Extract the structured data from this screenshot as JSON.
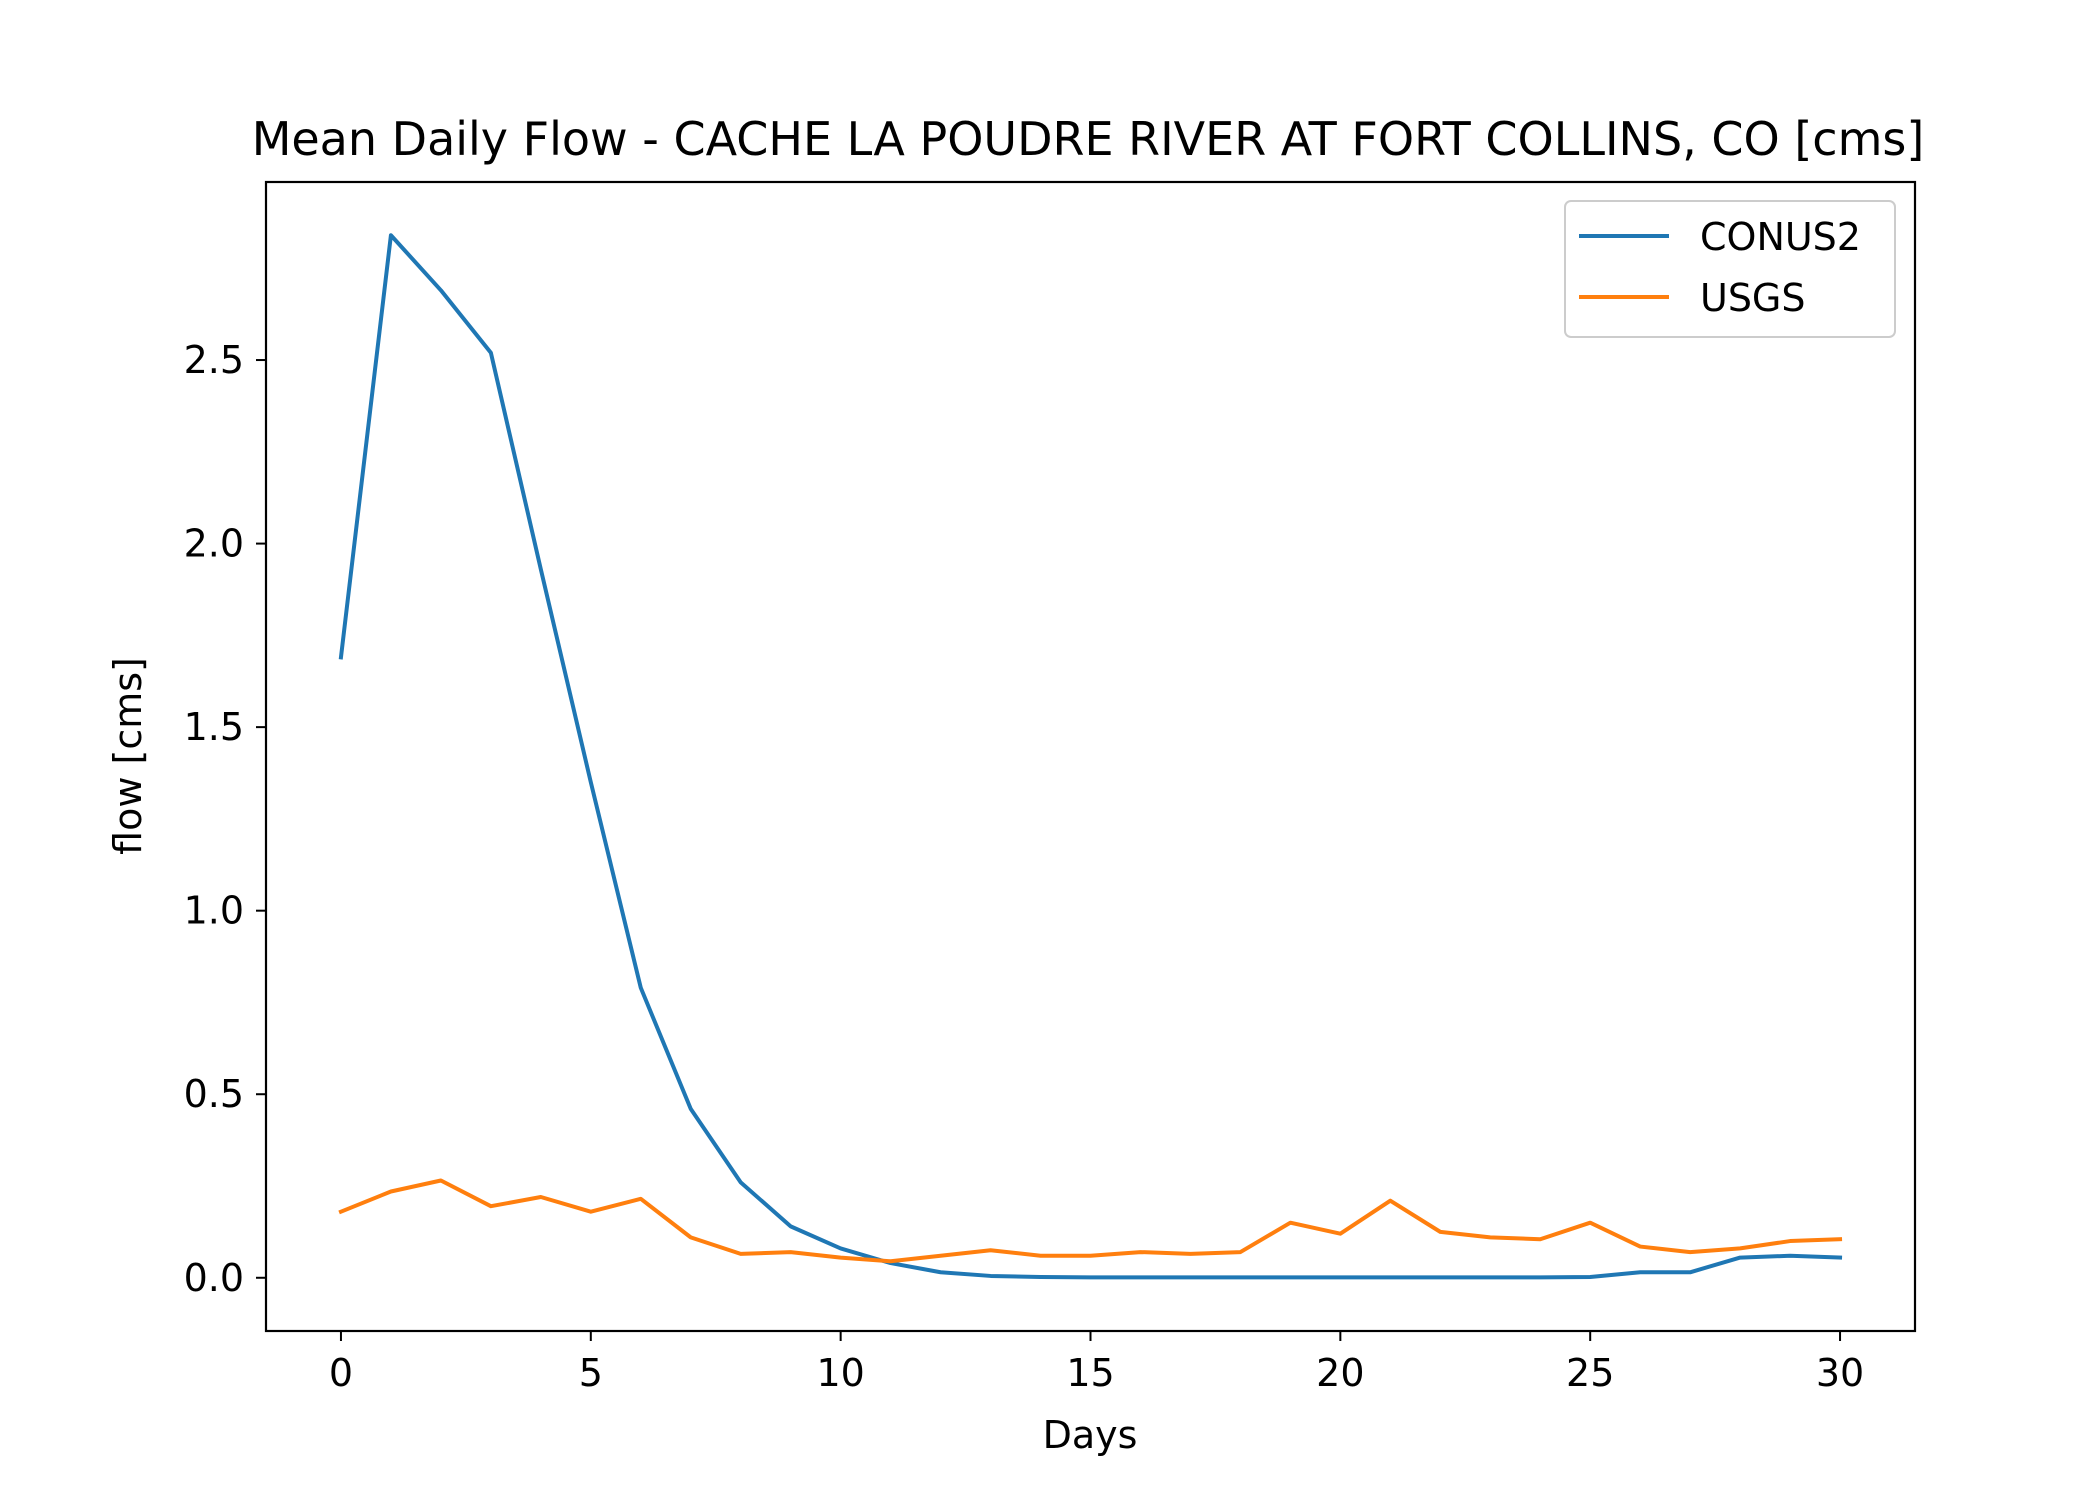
{
  "chart_data": {
    "type": "line",
    "title": "Mean Daily Flow - CACHE LA POUDRE RIVER AT FORT COLLINS, CO [cms]",
    "xlabel": "Days",
    "ylabel": "flow [cms]",
    "xlim": [
      -1.5,
      31.5
    ],
    "ylim": [
      -0.145,
      2.985
    ],
    "xticks": [
      0,
      5,
      10,
      15,
      20,
      25,
      30
    ],
    "xtick_labels": [
      "0",
      "5",
      "10",
      "15",
      "20",
      "25",
      "30"
    ],
    "yticks": [
      0.0,
      0.5,
      1.0,
      1.5,
      2.0,
      2.5
    ],
    "ytick_labels": [
      "0.0",
      "0.5",
      "1.0",
      "1.5",
      "2.0",
      "2.5"
    ],
    "grid": false,
    "legend_position": "top-right",
    "x": [
      0,
      1,
      2,
      3,
      4,
      5,
      6,
      7,
      8,
      9,
      10,
      11,
      12,
      13,
      14,
      15,
      16,
      17,
      18,
      19,
      20,
      21,
      22,
      23,
      24,
      25,
      26,
      27,
      28,
      29,
      30
    ],
    "series": [
      {
        "name": "CONUS2",
        "color": "#1f77b4",
        "values": [
          1.69,
          2.84,
          2.69,
          2.52,
          1.93,
          1.35,
          0.79,
          0.46,
          0.26,
          0.14,
          0.08,
          0.04,
          0.015,
          0.005,
          0.002,
          0.001,
          0.001,
          0.001,
          0.001,
          0.001,
          0.001,
          0.001,
          0.001,
          0.001,
          0.001,
          0.002,
          0.015,
          0.015,
          0.055,
          0.06,
          0.055
        ]
      },
      {
        "name": "USGS",
        "color": "#ff7f0e",
        "values": [
          0.18,
          0.235,
          0.265,
          0.195,
          0.22,
          0.18,
          0.215,
          0.11,
          0.065,
          0.07,
          0.055,
          0.045,
          0.06,
          0.075,
          0.06,
          0.06,
          0.07,
          0.065,
          0.07,
          0.15,
          0.12,
          0.21,
          0.125,
          0.11,
          0.105,
          0.15,
          0.085,
          0.07,
          0.08,
          0.1,
          0.105
        ]
      }
    ]
  }
}
